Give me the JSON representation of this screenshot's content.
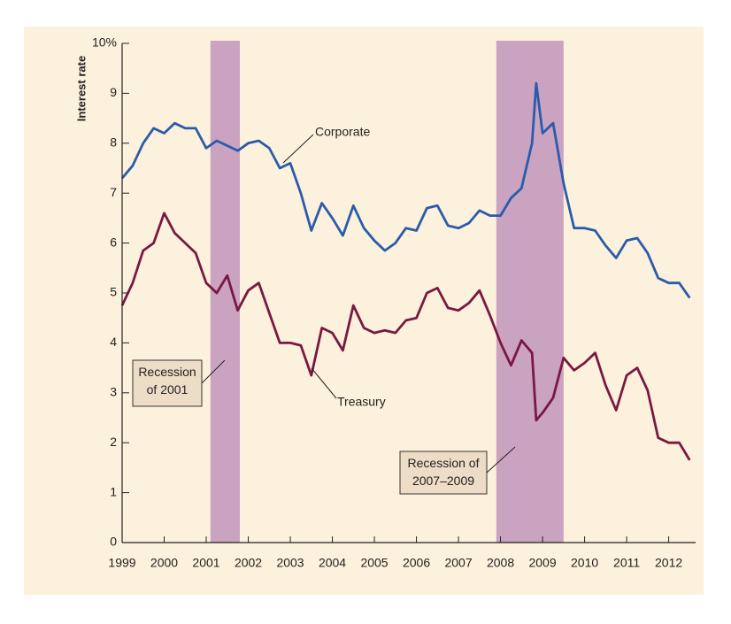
{
  "chart_data": {
    "type": "line",
    "y_label": "Interest rate",
    "x": [
      1999.0,
      1999.25,
      1999.5,
      1999.75,
      2000.0,
      2000.25,
      2000.5,
      2000.75,
      2001.0,
      2001.25,
      2001.5,
      2001.75,
      2002.0,
      2002.25,
      2002.5,
      2002.75,
      2003.0,
      2003.25,
      2003.5,
      2003.75,
      2004.0,
      2004.25,
      2004.5,
      2004.75,
      2005.0,
      2005.25,
      2005.5,
      2005.75,
      2006.0,
      2006.25,
      2006.5,
      2006.75,
      2007.0,
      2007.25,
      2007.5,
      2007.75,
      2008.0,
      2008.25,
      2008.5,
      2008.75,
      2008.85,
      2009.0,
      2009.25,
      2009.5,
      2009.75,
      2010.0,
      2010.25,
      2010.5,
      2010.75,
      2011.0,
      2011.25,
      2011.5,
      2011.75,
      2012.0,
      2012.25,
      2012.5
    ],
    "series": [
      {
        "name": "Corporate",
        "color": "#2b5bab",
        "values": [
          7.3,
          7.55,
          8.0,
          8.3,
          8.2,
          8.4,
          8.3,
          8.3,
          7.9,
          8.05,
          7.95,
          7.85,
          8.0,
          8.05,
          7.9,
          7.5,
          7.6,
          7.0,
          6.25,
          6.8,
          6.5,
          6.15,
          6.75,
          6.3,
          6.05,
          5.85,
          6.0,
          6.3,
          6.25,
          6.7,
          6.75,
          6.35,
          6.3,
          6.4,
          6.65,
          6.55,
          6.55,
          6.9,
          7.1,
          8.0,
          9.2,
          8.2,
          8.4,
          7.2,
          6.3,
          6.3,
          6.25,
          5.95,
          5.7,
          6.05,
          6.1,
          5.8,
          5.3,
          5.2,
          5.2,
          4.9
        ]
      },
      {
        "name": "Treasury",
        "color": "#7a1842",
        "values": [
          4.75,
          5.2,
          5.85,
          6.0,
          6.6,
          6.2,
          6.0,
          5.8,
          5.2,
          5.0,
          5.35,
          4.65,
          5.05,
          5.2,
          4.6,
          4.0,
          4.0,
          3.95,
          3.35,
          4.3,
          4.2,
          3.85,
          4.75,
          4.3,
          4.2,
          4.25,
          4.2,
          4.45,
          4.5,
          5.0,
          5.1,
          4.7,
          4.65,
          4.8,
          5.05,
          4.55,
          4.0,
          3.55,
          4.05,
          3.8,
          2.45,
          2.6,
          2.9,
          3.7,
          3.45,
          3.6,
          3.8,
          3.15,
          2.65,
          3.35,
          3.5,
          3.05,
          2.1,
          2.0,
          2.0,
          1.65
        ]
      }
    ],
    "recessions": [
      {
        "label": "Recession\nof 2001",
        "span": [
          2001.1,
          2001.8
        ]
      },
      {
        "label": "Recession of\n2007–2009",
        "span": [
          2007.9,
          2009.5
        ]
      }
    ],
    "recession_color": "#c9a3c0",
    "xlim": [
      1999,
      2012.64
    ],
    "xticks": [
      1999,
      2000,
      2001,
      2002,
      2003,
      2004,
      2005,
      2006,
      2007,
      2008,
      2009,
      2010,
      2011,
      2012
    ],
    "ylim": [
      0,
      10
    ],
    "yticks": [
      0,
      1,
      2,
      3,
      4,
      5,
      6,
      7,
      8,
      9,
      {
        "value": 10,
        "label": "10%"
      }
    ]
  }
}
